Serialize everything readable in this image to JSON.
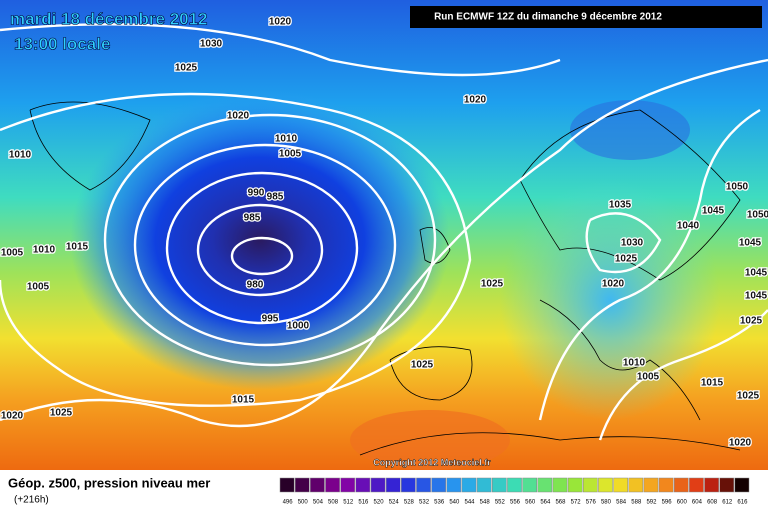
{
  "header": {
    "date": "mardi 18 décembre 2012",
    "time": "13:00 locale",
    "run": "Run ECMWF 12Z du dimanche 9 décembre 2012"
  },
  "isobar_labels": [
    "1020",
    "1030",
    "1025",
    "1020",
    "1020",
    "1010",
    "1010",
    "1005",
    "990",
    "985",
    "985",
    "980",
    "995",
    "1000",
    "1010",
    "1005",
    "1015",
    "1005",
    "1025",
    "1035",
    "1030",
    "1025",
    "1020",
    "1040",
    "1045",
    "1050",
    "1050",
    "1045",
    "1045",
    "1045",
    "1025",
    "1025",
    "1010",
    "1005",
    "1015",
    "1025",
    "1015",
    "1020",
    "1025",
    "1020"
  ],
  "copyright": "Copyright 2012 Meteociel.fr",
  "legend": {
    "title": "Géop. z500, pression niveau mer",
    "lead": "(+216h)",
    "scale": [
      496,
      500,
      504,
      508,
      512,
      516,
      520,
      524,
      528,
      532,
      536,
      540,
      544,
      548,
      552,
      556,
      560,
      564,
      568,
      572,
      576,
      580,
      584,
      588,
      592,
      596,
      600,
      604,
      608,
      612,
      616
    ]
  }
}
